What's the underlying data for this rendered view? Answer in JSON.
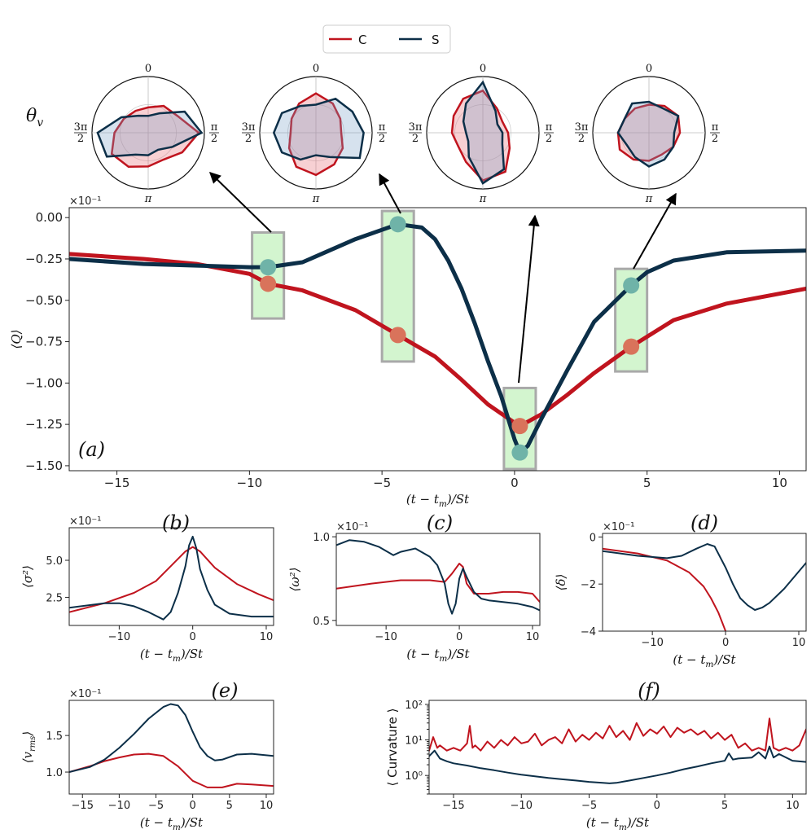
{
  "colors": {
    "C": "#c0141e",
    "S": "#0c2f48",
    "C_marker": "#d9735b",
    "S_marker": "#6fb3a8",
    "box_fill": "#d3f5cf",
    "box_edge": "#a9a9a9"
  },
  "legend": {
    "items": [
      {
        "name": "C",
        "color": "#c0141e"
      },
      {
        "name": "S",
        "color": "#0c2f48"
      }
    ]
  },
  "polar": {
    "ylabel": "θ",
    "ylabel_sub": "v",
    "angle_labels": {
      "top": "0",
      "right_num": "π",
      "right_den": "2",
      "bottom": "π",
      "left_num": "3π",
      "left_den": "2"
    },
    "arrow_labels": []
  },
  "chart_data": [
    {
      "id": "a",
      "type": "line",
      "panel_label": "(a)",
      "xlabel": "(t − t_m)/St",
      "ylabel": "⟨Q⟩",
      "multiplier": "×10⁻¹",
      "xlim": [
        -16.8,
        11
      ],
      "ylim": [
        -1.53,
        0.06
      ],
      "xticks": [
        "−15",
        "−10",
        "−5",
        "0",
        "5",
        "10"
      ],
      "xtick_values": [
        -15,
        -10,
        -5,
        0,
        5,
        10
      ],
      "yticks": [
        "0.00",
        "−0.25",
        "−0.50",
        "−0.75",
        "−1.00",
        "−1.25",
        "−1.50"
      ],
      "ytick_values": [
        0,
        -0.25,
        -0.5,
        -0.75,
        -1.0,
        -1.25,
        -1.5
      ],
      "series": [
        {
          "name": "C",
          "x": [
            -16.8,
            -14,
            -12,
            -10,
            -9.3,
            -8,
            -6,
            -4.4,
            -3,
            -2,
            -1,
            0,
            0.2,
            1,
            2,
            3,
            4.4,
            6,
            8,
            11
          ],
          "y": [
            -0.22,
            -0.25,
            -0.28,
            -0.34,
            -0.4,
            -0.44,
            -0.56,
            -0.71,
            -0.84,
            -0.98,
            -1.13,
            -1.24,
            -1.26,
            -1.19,
            -1.07,
            -0.94,
            -0.78,
            -0.62,
            -0.52,
            -0.43
          ]
        },
        {
          "name": "S",
          "x": [
            -16.8,
            -14,
            -12,
            -10,
            -9.3,
            -8,
            -6,
            -4.4,
            -3.5,
            -3,
            -2.5,
            -2,
            -1.5,
            -1,
            -0.5,
            0,
            0.2,
            0.5,
            1,
            2,
            3,
            4.4,
            5,
            6,
            8,
            11
          ],
          "y": [
            -0.25,
            -0.28,
            -0.29,
            -0.3,
            -0.3,
            -0.27,
            -0.13,
            -0.04,
            -0.06,
            -0.13,
            -0.26,
            -0.43,
            -0.64,
            -0.87,
            -1.08,
            -1.34,
            -1.42,
            -1.38,
            -1.22,
            -0.92,
            -0.63,
            -0.41,
            -0.33,
            -0.26,
            -0.21,
            -0.2
          ]
        }
      ],
      "highlight_boxes": [
        {
          "x_range": [
            -9.9,
            -8.7
          ],
          "y_range": [
            -0.61,
            -0.09
          ]
        },
        {
          "x_range": [
            -5.0,
            -3.8
          ],
          "y_range": [
            -0.87,
            0.04
          ]
        },
        {
          "x_range": [
            -0.4,
            0.8
          ],
          "y_range": [
            -1.52,
            -1.03
          ]
        },
        {
          "x_range": [
            3.8,
            5.0
          ],
          "y_range": [
            -0.93,
            -0.31
          ]
        }
      ],
      "markers": [
        {
          "series": "S",
          "x": -9.3,
          "y": -0.3
        },
        {
          "series": "C",
          "x": -9.3,
          "y": -0.4
        },
        {
          "series": "S",
          "x": -4.4,
          "y": -0.04
        },
        {
          "series": "C",
          "x": -4.4,
          "y": -0.71
        },
        {
          "series": "C",
          "x": 0.2,
          "y": -1.26
        },
        {
          "series": "S",
          "x": 0.2,
          "y": -1.42
        },
        {
          "series": "S",
          "x": 4.4,
          "y": -0.41
        },
        {
          "series": "C",
          "x": 4.4,
          "y": -0.78
        }
      ]
    },
    {
      "id": "b",
      "type": "line",
      "panel_label": "(b)",
      "xlabel": "(t − t_m)/St",
      "ylabel": "⟨σ²⟩",
      "multiplier": "×10⁻¹",
      "xlim": [
        -16.8,
        11
      ],
      "ylim": [
        0.6,
        7.2
      ],
      "xticks": [
        "−10",
        "0",
        "10"
      ],
      "xtick_values": [
        -10,
        0,
        10
      ],
      "yticks": [
        "2.5",
        "5.0"
      ],
      "ytick_values": [
        2.5,
        5.0
      ],
      "series": [
        {
          "name": "C",
          "x": [
            -16.8,
            -12,
            -8,
            -5,
            -3,
            -1,
            0,
            1,
            3,
            6,
            9,
            11
          ],
          "y": [
            1.5,
            2.1,
            2.8,
            3.6,
            4.6,
            5.6,
            5.9,
            5.6,
            4.5,
            3.4,
            2.7,
            2.3
          ]
        },
        {
          "name": "S",
          "x": [
            -16.8,
            -12,
            -10,
            -8,
            -6,
            -4,
            -3,
            -2,
            -1,
            -0.5,
            0,
            0.5,
            1,
            2,
            3,
            5,
            8,
            11
          ],
          "y": [
            1.8,
            2.1,
            2.1,
            1.9,
            1.5,
            1.0,
            1.5,
            2.8,
            4.6,
            6.0,
            6.6,
            5.8,
            4.4,
            3.0,
            2.0,
            1.4,
            1.2,
            1.2
          ]
        }
      ]
    },
    {
      "id": "c",
      "type": "line",
      "panel_label": "(c)",
      "xlabel": "(t − t_m)/St",
      "ylabel": "⟨ω²⟩",
      "multiplier": "×10⁻¹",
      "xlim": [
        -16.8,
        11
      ],
      "ylim": [
        0.47,
        1.02
      ],
      "xticks": [
        "−10",
        "0",
        "10"
      ],
      "xtick_values": [
        -10,
        0,
        10
      ],
      "yticks": [
        "0.5",
        "1.0"
      ],
      "ytick_values": [
        0.5,
        1.0
      ],
      "series": [
        {
          "name": "C",
          "x": [
            -16.8,
            -12,
            -8,
            -4,
            -2,
            -1,
            0,
            0.5,
            1,
            2,
            4,
            6,
            8,
            10,
            11
          ],
          "y": [
            0.69,
            0.72,
            0.74,
            0.74,
            0.73,
            0.78,
            0.84,
            0.82,
            0.72,
            0.66,
            0.66,
            0.67,
            0.67,
            0.66,
            0.61
          ]
        },
        {
          "name": "S",
          "x": [
            -16.8,
            -15,
            -13,
            -11,
            -9,
            -8,
            -6,
            -4,
            -3,
            -2,
            -1.5,
            -1,
            -0.5,
            0,
            0.5,
            1,
            2,
            3,
            4,
            6,
            8,
            10,
            11
          ],
          "y": [
            0.95,
            0.98,
            0.97,
            0.94,
            0.89,
            0.91,
            0.93,
            0.88,
            0.83,
            0.72,
            0.6,
            0.54,
            0.6,
            0.75,
            0.81,
            0.76,
            0.67,
            0.63,
            0.62,
            0.61,
            0.6,
            0.58,
            0.56
          ]
        }
      ]
    },
    {
      "id": "d",
      "type": "line",
      "panel_label": "(d)",
      "xlabel": "(t − t_m)/St",
      "ylabel": "⟨δ⟩",
      "multiplier": "×10⁻¹",
      "xlim": [
        -16.8,
        11
      ],
      "ylim": [
        -4.0,
        0.15
      ],
      "xticks": [
        "−10",
        "0",
        "10"
      ],
      "xtick_values": [
        -10,
        0,
        10
      ],
      "yticks": [
        "0",
        "−2",
        "−4"
      ],
      "ytick_values": [
        0,
        -2,
        -4
      ],
      "series": [
        {
          "name": "C",
          "x": [
            -16.8,
            -12,
            -8,
            -5,
            -3,
            -2,
            -1,
            -0.5,
            0
          ],
          "y": [
            -0.5,
            -0.7,
            -1.0,
            -1.5,
            -2.1,
            -2.6,
            -3.2,
            -3.6,
            -4.0
          ]
        },
        {
          "name": "S",
          "x": [
            -16.8,
            -12,
            -8,
            -6,
            -4,
            -2.5,
            -1.5,
            0,
            1,
            2,
            3,
            4,
            5,
            6,
            8,
            11
          ],
          "y": [
            -0.6,
            -0.8,
            -0.9,
            -0.8,
            -0.5,
            -0.3,
            -0.4,
            -1.3,
            -2.0,
            -2.6,
            -2.9,
            -3.1,
            -3.0,
            -2.8,
            -2.2,
            -1.1
          ]
        }
      ]
    },
    {
      "id": "e",
      "type": "line",
      "panel_label": "(e)",
      "xlabel": "(t − t_m)/St",
      "ylabel": "⟨v_rms⟩",
      "multiplier": "×10⁻¹",
      "xlim": [
        -16.8,
        11
      ],
      "ylim": [
        0.7,
        1.98
      ],
      "xticks": [
        "−15",
        "−10",
        "−5",
        "0",
        "5",
        "10"
      ],
      "xtick_values": [
        -15,
        -10,
        -5,
        0,
        5,
        10
      ],
      "yticks": [
        "1.0",
        "1.5"
      ],
      "ytick_values": [
        1.0,
        1.5
      ],
      "series": [
        {
          "name": "C",
          "x": [
            -16.8,
            -14,
            -12,
            -10,
            -8,
            -6,
            -4,
            -2,
            0,
            2,
            4,
            6,
            8,
            11
          ],
          "y": [
            1.0,
            1.08,
            1.15,
            1.2,
            1.24,
            1.25,
            1.22,
            1.08,
            0.88,
            0.79,
            0.79,
            0.84,
            0.83,
            0.81
          ]
        },
        {
          "name": "S",
          "x": [
            -16.8,
            -14,
            -12,
            -10,
            -8,
            -6,
            -4,
            -3,
            -2,
            -1,
            0,
            1,
            2,
            3,
            4,
            6,
            8,
            11
          ],
          "y": [
            1.0,
            1.07,
            1.17,
            1.33,
            1.52,
            1.73,
            1.89,
            1.93,
            1.91,
            1.78,
            1.55,
            1.34,
            1.22,
            1.16,
            1.17,
            1.24,
            1.25,
            1.22
          ]
        }
      ]
    },
    {
      "id": "f",
      "type": "line",
      "panel_label": "(f)",
      "xlabel": "(t − t_m)/St",
      "ylabel": "⟨ Curvature ⟩",
      "ylog": true,
      "xlim": [
        -16.8,
        11
      ],
      "ylim": [
        0.3,
        130
      ],
      "xticks": [
        "−15",
        "−10",
        "−5",
        "0",
        "5",
        "10"
      ],
      "xtick_values": [
        -15,
        -10,
        -5,
        0,
        5,
        10
      ],
      "yticks": [
        "10⁰",
        "10¹",
        "10²"
      ],
      "ytick_values": [
        1,
        10,
        100
      ],
      "series": [
        {
          "name": "C",
          "x": [
            -16.8,
            -16.5,
            -16.2,
            -16,
            -15.5,
            -15,
            -14.5,
            -14,
            -13.8,
            -13.6,
            -13.4,
            -13,
            -12.5,
            -12,
            -11.5,
            -11,
            -10.5,
            -10,
            -9.5,
            -9,
            -8.5,
            -8,
            -7.5,
            -7,
            -6.5,
            -6,
            -5.5,
            -5,
            -4.5,
            -4,
            -3.5,
            -3,
            -2.5,
            -2,
            -1.5,
            -1,
            -0.5,
            0,
            0.5,
            1,
            1.5,
            2,
            2.5,
            3,
            3.5,
            4,
            4.5,
            5,
            5.5,
            6,
            6.5,
            7,
            7.5,
            8,
            8.3,
            8.6,
            9,
            9.5,
            10,
            10.5,
            11
          ],
          "y": [
            5,
            12,
            6,
            7,
            5,
            6,
            5,
            8,
            25,
            6,
            7,
            5,
            9,
            6,
            10,
            7,
            12,
            8,
            9,
            15,
            7,
            10,
            12,
            8,
            20,
            9,
            14,
            10,
            16,
            11,
            25,
            12,
            18,
            10,
            30,
            13,
            20,
            15,
            24,
            12,
            22,
            16,
            20,
            14,
            18,
            11,
            16,
            10,
            14,
            6,
            8,
            5,
            6,
            5,
            40,
            6,
            5,
            6,
            5,
            7,
            20
          ]
        },
        {
          "name": "S",
          "x": [
            -16.8,
            -16.4,
            -16,
            -15.5,
            -15,
            -14,
            -13,
            -12,
            -11,
            -10,
            -9,
            -8,
            -7,
            -6,
            -5,
            -4,
            -3.5,
            -3,
            -2,
            -1,
            0,
            1,
            2,
            3,
            4,
            5,
            5.3,
            5.6,
            6,
            7,
            7.5,
            8,
            8.3,
            8.6,
            9,
            10,
            11
          ],
          "y": [
            3.5,
            5,
            3,
            2.5,
            2.2,
            1.9,
            1.6,
            1.4,
            1.2,
            1.05,
            0.95,
            0.85,
            0.78,
            0.72,
            0.66,
            0.62,
            0.6,
            0.62,
            0.72,
            0.85,
            1.0,
            1.2,
            1.5,
            1.8,
            2.2,
            2.6,
            4.2,
            2.8,
            3.0,
            3.2,
            4.5,
            3.0,
            6.5,
            3.2,
            4.0,
            2.6,
            2.4
          ]
        }
      ]
    }
  ]
}
